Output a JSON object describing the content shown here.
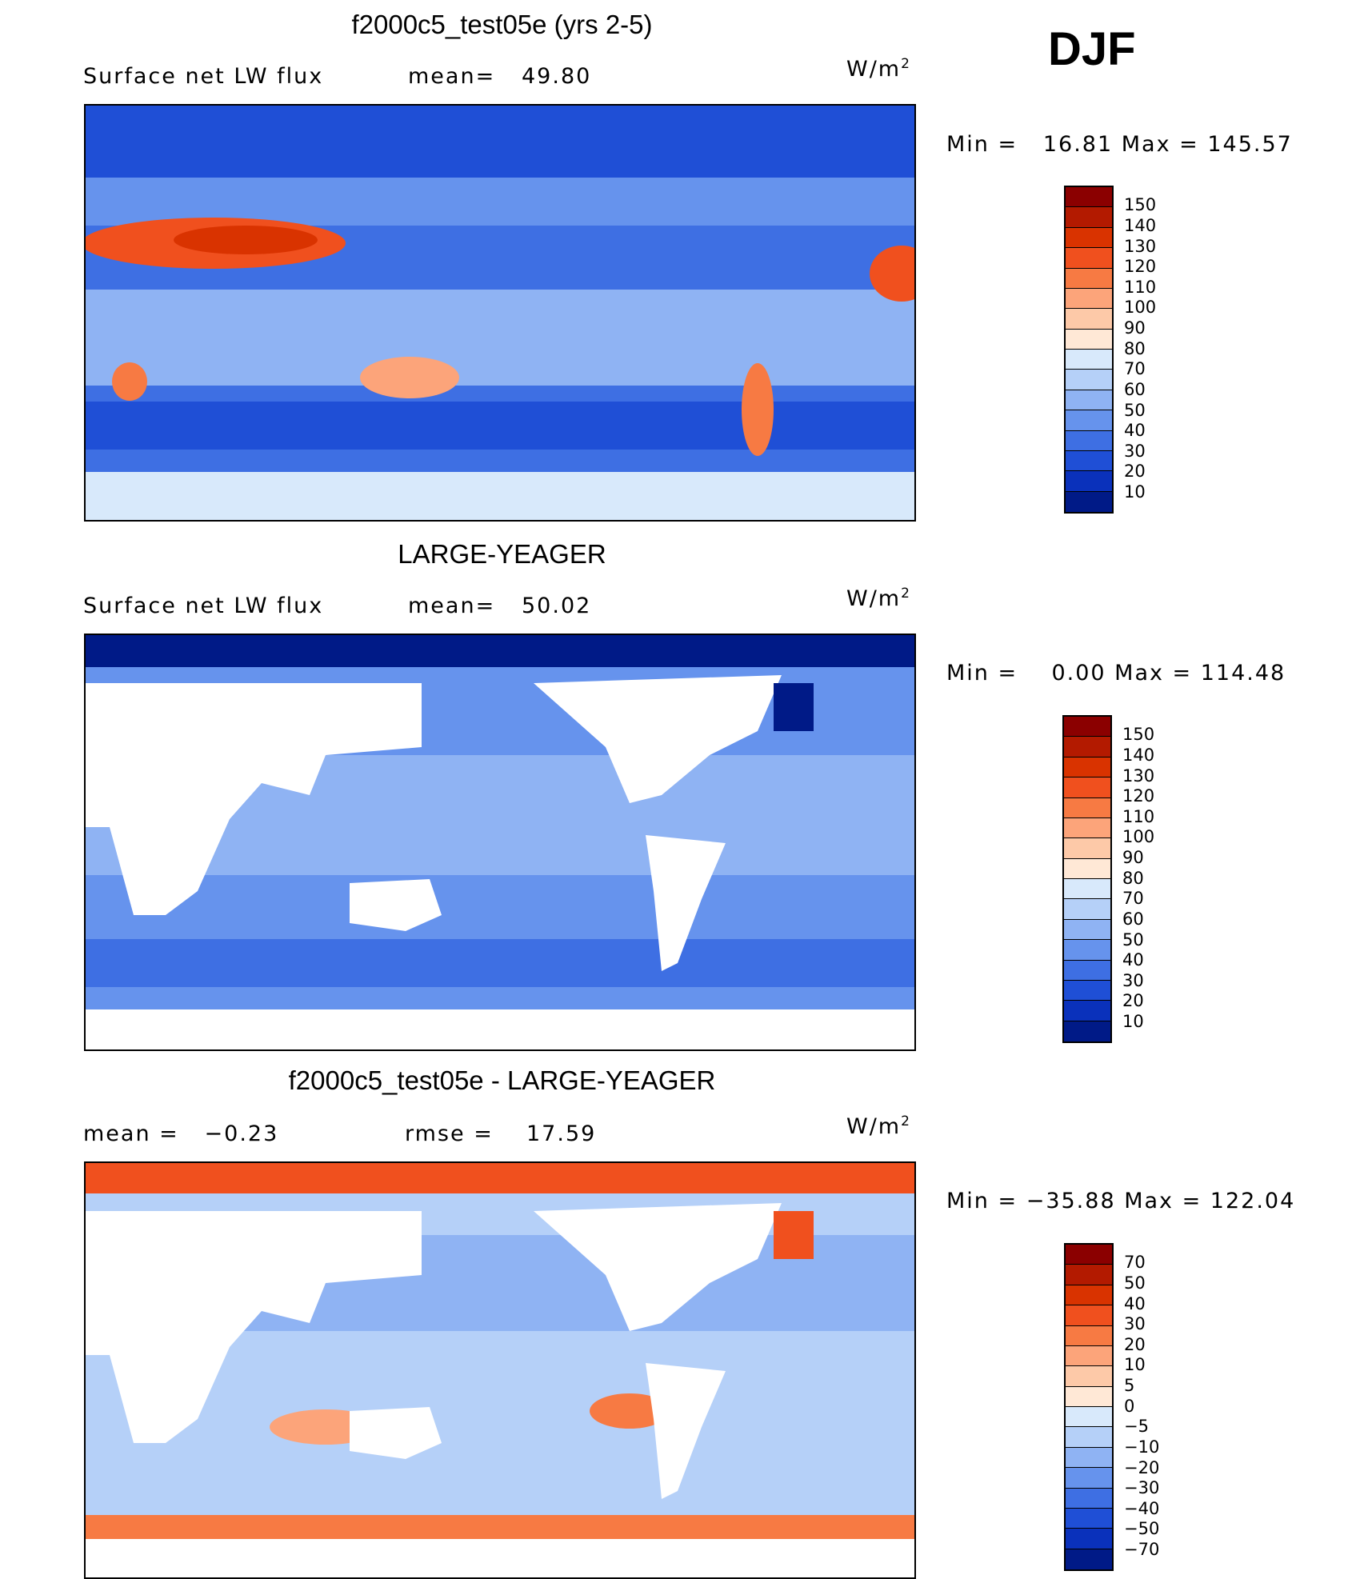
{
  "season": "DJF",
  "chart_data": [
    {
      "type": "heatmap",
      "title": "f2000c5_test05e (yrs 2-5)",
      "left_label": "Surface net LW flux",
      "stat_label": "mean=",
      "stat_value": "49.80",
      "units_base": "W/m",
      "units_exp": "2",
      "range_text": "Min =   16.81 Max = 145.57",
      "min": 16.81,
      "max": 145.57,
      "colorbar_labels": [
        "150",
        "140",
        "130",
        "120",
        "110",
        "100",
        "90",
        "80",
        "70",
        "60",
        "50",
        "40",
        "30",
        "20",
        "10"
      ],
      "colorbar_colors": [
        "#8b0000",
        "#b31a00",
        "#d93300",
        "#f0501e",
        "#f77a43",
        "#fca47a",
        "#fdc9a8",
        "#ffe8d6",
        "#d8e9fb",
        "#b5d0f8",
        "#8fb3f3",
        "#6693ed",
        "#3e6fe3",
        "#1f4fd6",
        "#0a31bb",
        "#001a87"
      ]
    },
    {
      "type": "heatmap",
      "title": "LARGE-YEAGER",
      "left_label": "Surface net LW flux",
      "stat_label": "mean=",
      "stat_value": "50.02",
      "units_base": "W/m",
      "units_exp": "2",
      "range_text": "Min =    0.00 Max = 114.48",
      "min": 0.0,
      "max": 114.48,
      "colorbar_labels": [
        "150",
        "140",
        "130",
        "120",
        "110",
        "100",
        "90",
        "80",
        "70",
        "60",
        "50",
        "40",
        "30",
        "20",
        "10"
      ],
      "colorbar_colors": [
        "#8b0000",
        "#b31a00",
        "#d93300",
        "#f0501e",
        "#f77a43",
        "#fca47a",
        "#fdc9a8",
        "#ffe8d6",
        "#d8e9fb",
        "#b5d0f8",
        "#8fb3f3",
        "#6693ed",
        "#3e6fe3",
        "#1f4fd6",
        "#0a31bb",
        "#001a87"
      ]
    },
    {
      "type": "heatmap",
      "title": "f2000c5_test05e - LARGE-YEAGER",
      "left_label": "mean =   −0.23",
      "stat_label": "rmse =",
      "stat_value": "17.59",
      "units_base": "W/m",
      "units_exp": "2",
      "range_text": "Min = −35.88 Max = 122.04",
      "min": -35.88,
      "max": 122.04,
      "colorbar_labels": [
        "70",
        "50",
        "40",
        "30",
        "20",
        "10",
        "5",
        "0",
        "−5",
        "−10",
        "−20",
        "−30",
        "−40",
        "−50",
        "−70"
      ],
      "colorbar_colors": [
        "#8b0000",
        "#b31a00",
        "#d93300",
        "#f0501e",
        "#f77a43",
        "#fca47a",
        "#fdc9a8",
        "#ffe8d6",
        "#d8e9fb",
        "#b5d0f8",
        "#8fb3f3",
        "#6693ed",
        "#3e6fe3",
        "#1f4fd6",
        "#0a31bb",
        "#001a87"
      ]
    }
  ]
}
